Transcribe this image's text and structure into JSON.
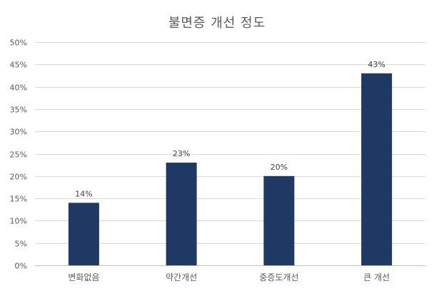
{
  "chart_data": {
    "type": "bar",
    "title": "불면증 개선 정도",
    "categories": [
      "변화없음",
      "약간개선",
      "중증도개선",
      "큰 개선"
    ],
    "values": [
      14,
      23,
      20,
      43
    ],
    "data_labels": [
      "14%",
      "23%",
      "20%",
      "43%"
    ],
    "ylim": [
      0,
      50
    ],
    "yticks": [
      0,
      5,
      10,
      15,
      20,
      25,
      30,
      35,
      40,
      45,
      50
    ],
    "ytick_labels": [
      "0%",
      "5%",
      "10%",
      "15%",
      "20%",
      "25%",
      "30%",
      "35%",
      "40%",
      "45%",
      "50%"
    ],
    "xlabel": "",
    "ylabel": "",
    "grid": true,
    "legend": "none",
    "bar_color": "#1F3864"
  }
}
